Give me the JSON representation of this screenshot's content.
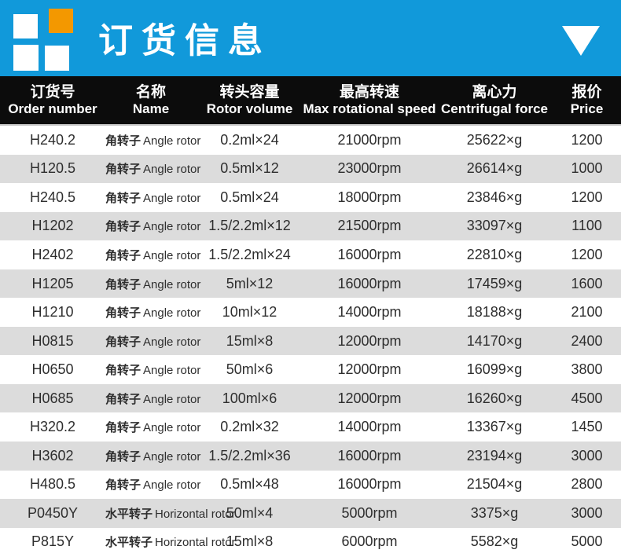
{
  "banner": {
    "title": "订货信息",
    "background_color": "#1199da",
    "logo_orange_color": "#f39800",
    "logo_square_color": "#ffffff",
    "triangle_icon": "triangle-down",
    "triangle_color": "#ffffff"
  },
  "table": {
    "header_background": "#0c0c0c",
    "stripe_color": "#dcdcdc",
    "columns": [
      {
        "cn": "订货号",
        "en": "Order number"
      },
      {
        "cn": "名称",
        "en": "Name"
      },
      {
        "cn": "转头容量",
        "en": "Rotor volume"
      },
      {
        "cn": "最高转速",
        "en": "Max rotational speed"
      },
      {
        "cn": "离心力",
        "en": "Centrifugal force"
      },
      {
        "cn": "报价",
        "en": "Price"
      }
    ],
    "rows": [
      {
        "order": "H240.2",
        "name_cn": "角转子",
        "name_en": "Angle rotor",
        "volume": "0.2ml×24",
        "speed": "21000rpm",
        "force": "25622×g",
        "price": "1200"
      },
      {
        "order": "H120.5",
        "name_cn": "角转子",
        "name_en": "Angle rotor",
        "volume": "0.5ml×12",
        "speed": "23000rpm",
        "force": "26614×g",
        "price": "1000"
      },
      {
        "order": "H240.5",
        "name_cn": "角转子",
        "name_en": "Angle rotor",
        "volume": "0.5ml×24",
        "speed": "18000rpm",
        "force": "23846×g",
        "price": "1200"
      },
      {
        "order": "H1202",
        "name_cn": "角转子",
        "name_en": "Angle rotor",
        "volume": "1.5/2.2ml×12",
        "speed": "21500rpm",
        "force": "33097×g",
        "price": "1100"
      },
      {
        "order": "H2402",
        "name_cn": "角转子",
        "name_en": "Angle rotor",
        "volume": "1.5/2.2ml×24",
        "speed": "16000rpm",
        "force": "22810×g",
        "price": "1200"
      },
      {
        "order": "H1205",
        "name_cn": "角转子",
        "name_en": "Angle rotor",
        "volume": "5ml×12",
        "speed": "16000rpm",
        "force": "17459×g",
        "price": "1600"
      },
      {
        "order": "H1210",
        "name_cn": "角转子",
        "name_en": "Angle rotor",
        "volume": "10ml×12",
        "speed": "14000rpm",
        "force": "18188×g",
        "price": "2100"
      },
      {
        "order": "H0815",
        "name_cn": "角转子",
        "name_en": "Angle rotor",
        "volume": "15ml×8",
        "speed": "12000rpm",
        "force": "14170×g",
        "price": "2400"
      },
      {
        "order": "H0650",
        "name_cn": "角转子",
        "name_en": "Angle rotor",
        "volume": "50ml×6",
        "speed": "12000rpm",
        "force": "16099×g",
        "price": "3800"
      },
      {
        "order": "H0685",
        "name_cn": "角转子",
        "name_en": "Angle rotor",
        "volume": "100ml×6",
        "speed": "12000rpm",
        "force": "16260×g",
        "price": "4500"
      },
      {
        "order": "H320.2",
        "name_cn": "角转子",
        "name_en": "Angle rotor",
        "volume": "0.2ml×32",
        "speed": "14000rpm",
        "force": "13367×g",
        "price": "1450"
      },
      {
        "order": "H3602",
        "name_cn": "角转子",
        "name_en": "Angle rotor",
        "volume": "1.5/2.2ml×36",
        "speed": "16000rpm",
        "force": "23194×g",
        "price": "3000"
      },
      {
        "order": "H480.5",
        "name_cn": "角转子",
        "name_en": "Angle rotor",
        "volume": "0.5ml×48",
        "speed": "16000rpm",
        "force": "21504×g",
        "price": "2800"
      },
      {
        "order": "P0450Y",
        "name_cn": "水平转子",
        "name_en": "Horizontal rotor",
        "volume": "50ml×4",
        "speed": "5000rpm",
        "force": "3375×g",
        "price": "3000"
      },
      {
        "order": "P815Y",
        "name_cn": "水平转子",
        "name_en": "Horizontal rotor",
        "volume": "15ml×8",
        "speed": "6000rpm",
        "force": "5582×g",
        "price": "5000"
      }
    ]
  }
}
